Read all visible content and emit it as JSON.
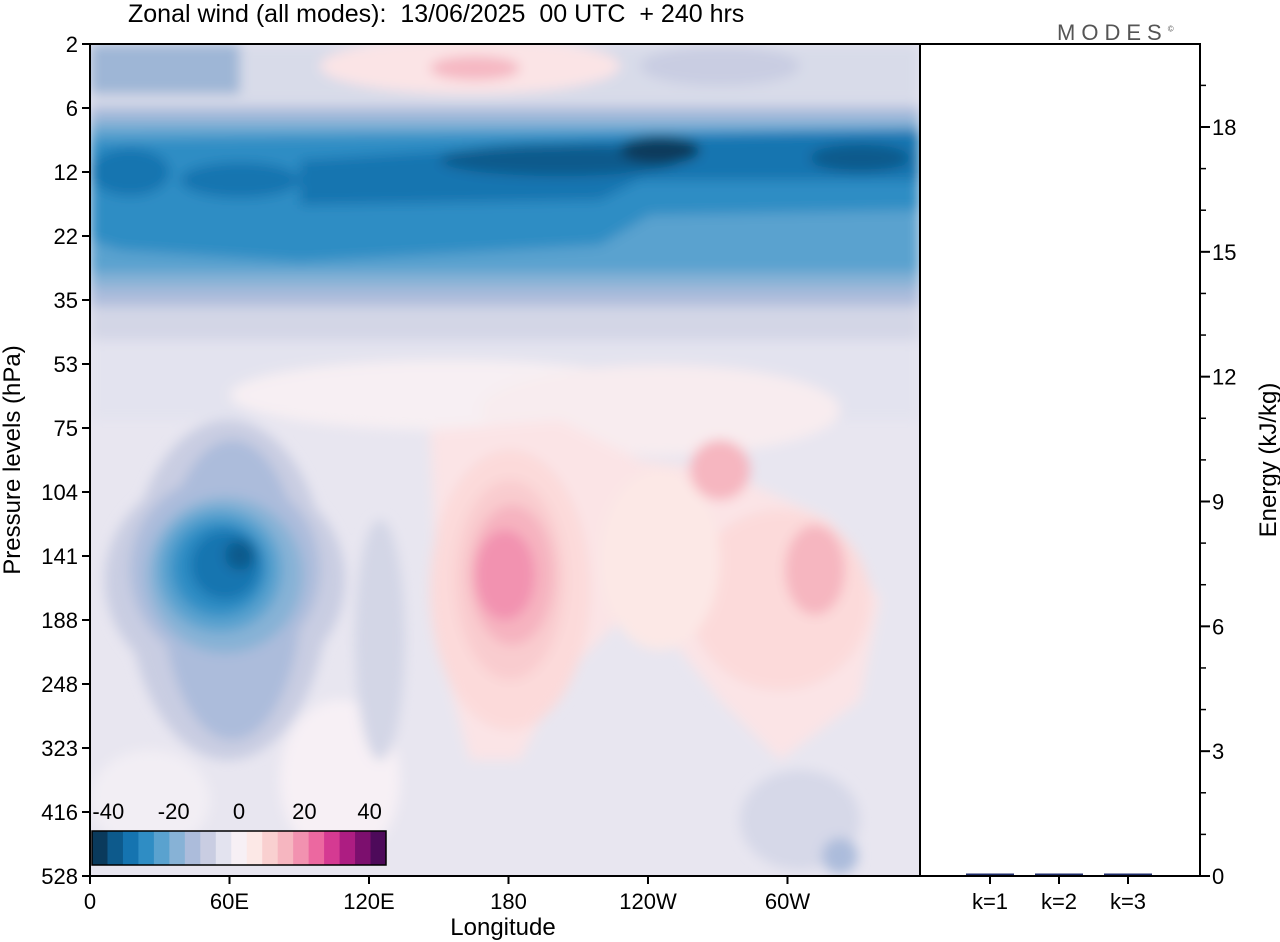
{
  "header": {
    "title": "Zonal wind (all modes):  13/06/2025  00 UTC  + 240 hrs",
    "logo": "MODES"
  },
  "chart_data": [
    {
      "type": "heatmap",
      "title": "Zonal wind (all modes):  13/06/2025  00 UTC  + 240 hrs",
      "xlabel": "Longitude",
      "ylabel": "Pressure levels (hPa)",
      "x_ticks": [
        "0",
        "60E",
        "120E",
        "180",
        "120W",
        "60W"
      ],
      "x_tick_values": [
        0,
        60,
        120,
        180,
        240,
        300
      ],
      "xlim": [
        0,
        357
      ],
      "y_ticks": [
        "2",
        "6",
        "12",
        "22",
        "35",
        "53",
        "75",
        "104",
        "141",
        "188",
        "248",
        "323",
        "416",
        "528"
      ],
      "y_scale": "categorical pressure levels, 2 hPa at top, 528 hPa at bottom",
      "colorbar": {
        "tick_labels": [
          "-40",
          "-20",
          "0",
          "20",
          "40"
        ],
        "tick_values": [
          -40,
          -20,
          0,
          20,
          40
        ],
        "range": [
          -45,
          45
        ],
        "step": 5,
        "colors": [
          "#0a3a5c",
          "#0d5a8c",
          "#1574b0",
          "#2f8dc4",
          "#5aa2cf",
          "#87b2d6",
          "#acbcdb",
          "#c9cde2",
          "#e3e3ef",
          "#f7f0f5",
          "#fce8e6",
          "#f9d0d0",
          "#f6b6c0",
          "#f292b0",
          "#ec68a0",
          "#d53a92",
          "#ad1d82",
          "#7c0f6e",
          "#4d0a5a"
        ]
      },
      "features": [
        {
          "name": "stratospheric easterly jet",
          "lon_range": [
            0,
            357
          ],
          "levels": "6-35 hPa",
          "value_min": -40
        },
        {
          "name": "upper tropospheric easterly core",
          "lon_range": [
            20,
            95
          ],
          "levels": "104-248 hPa",
          "value_min": -30
        },
        {
          "name": "westerly core near dateline",
          "lon_range": [
            160,
            200
          ],
          "levels": "104-188 hPa",
          "value_max": 20
        }
      ]
    },
    {
      "type": "bar",
      "categories": [
        "k=1",
        "k=2",
        "k=3"
      ],
      "values": [
        0.02,
        0.01,
        0.005
      ],
      "ylabel": "Energy (kJ/kg)",
      "y_ticks": [
        "0",
        "3",
        "6",
        "9",
        "12",
        "15",
        "18"
      ],
      "ylim": [
        0,
        20
      ],
      "bar_color": "#1f2d6b"
    }
  ]
}
